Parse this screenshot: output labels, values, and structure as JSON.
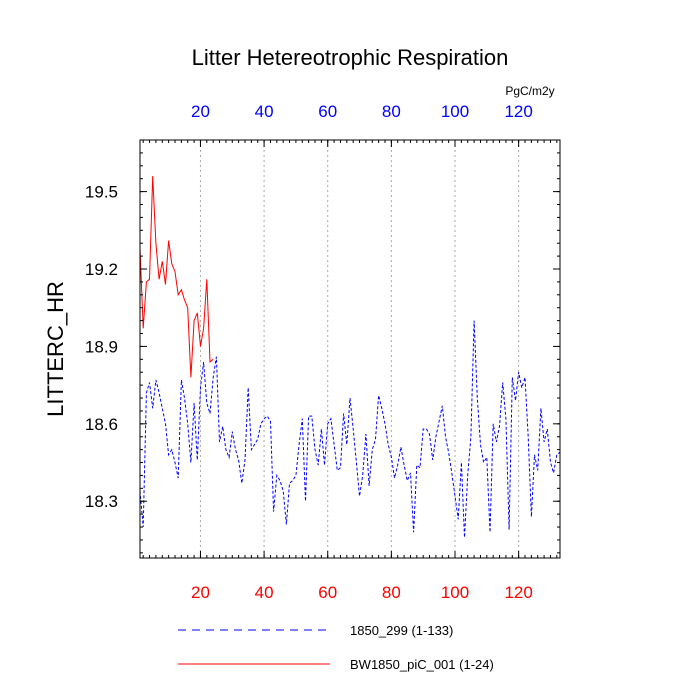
{
  "chart_data": {
    "type": "line",
    "title": "Litter Hetereotrophic Respiration",
    "ylabel": "LITTERC_HR",
    "top_axis_unit": "PgC/m2y",
    "xlim": [
      1,
      133
    ],
    "ylim": [
      18.08,
      19.7
    ],
    "x_ticks": [
      20,
      40,
      60,
      80,
      100,
      120
    ],
    "y_ticks": [
      18.3,
      18.6,
      18.9,
      19.2,
      19.5
    ],
    "y_tick_labels": [
      "18.3",
      "18.6",
      "18.9",
      "19.2",
      "19.5"
    ],
    "y_minor_step": 0.05,
    "x_minor_step": 2,
    "grid": "vertical dotted at major x ticks",
    "colors": {
      "bottom_ticks": "#ff0000",
      "top_ticks": "#0000ff",
      "grid": "#aaaaaa"
    },
    "series": [
      {
        "name": "1850_299 (1-133)",
        "color": "#0000ff",
        "dash": "dashed",
        "values": [
          18.34,
          18.2,
          18.72,
          18.76,
          18.66,
          18.77,
          18.72,
          18.66,
          18.6,
          18.48,
          18.5,
          18.45,
          18.39,
          18.77,
          18.7,
          18.6,
          18.45,
          18.68,
          18.46,
          18.74,
          18.84,
          18.68,
          18.64,
          18.78,
          18.86,
          18.53,
          18.59,
          18.5,
          18.47,
          18.57,
          18.5,
          18.46,
          18.37,
          18.46,
          18.74,
          18.5,
          18.52,
          18.54,
          18.6,
          18.62,
          18.63,
          18.61,
          18.26,
          18.4,
          18.38,
          18.34,
          18.21,
          18.37,
          18.38,
          18.4,
          18.52,
          18.62,
          18.3,
          18.63,
          18.63,
          18.5,
          18.44,
          18.58,
          18.44,
          18.6,
          18.62,
          18.52,
          18.42,
          18.43,
          18.64,
          18.52,
          18.7,
          18.58,
          18.45,
          18.32,
          18.4,
          18.56,
          18.36,
          18.5,
          18.54,
          18.71,
          18.66,
          18.6,
          18.52,
          18.47,
          18.39,
          18.44,
          18.51,
          18.44,
          18.38,
          18.41,
          18.18,
          18.44,
          18.43,
          18.58,
          18.58,
          18.56,
          18.46,
          18.55,
          18.61,
          18.67,
          18.55,
          18.49,
          18.41,
          18.32,
          18.23,
          18.45,
          18.16,
          18.4,
          18.55,
          19.0,
          18.7,
          18.52,
          18.45,
          18.47,
          18.18,
          18.6,
          18.53,
          18.59,
          18.76,
          18.62,
          18.19,
          18.78,
          18.69,
          18.8,
          18.74,
          18.78,
          18.55,
          18.24,
          18.48,
          18.42,
          18.66,
          18.53,
          18.58,
          18.45,
          18.41,
          18.48,
          18.49
        ]
      },
      {
        "name": "BW1850_piC_001 (1-24)",
        "color": "#ff0000",
        "dash": "solid",
        "values": [
          19.28,
          18.97,
          19.15,
          19.16,
          19.56,
          19.3,
          19.16,
          19.23,
          19.14,
          19.31,
          19.22,
          19.19,
          19.1,
          19.12,
          19.08,
          19.05,
          18.78,
          19.0,
          19.03,
          18.9,
          18.97,
          19.16,
          18.84,
          18.85
        ]
      }
    ],
    "legend": {
      "placement": "bottom"
    }
  }
}
